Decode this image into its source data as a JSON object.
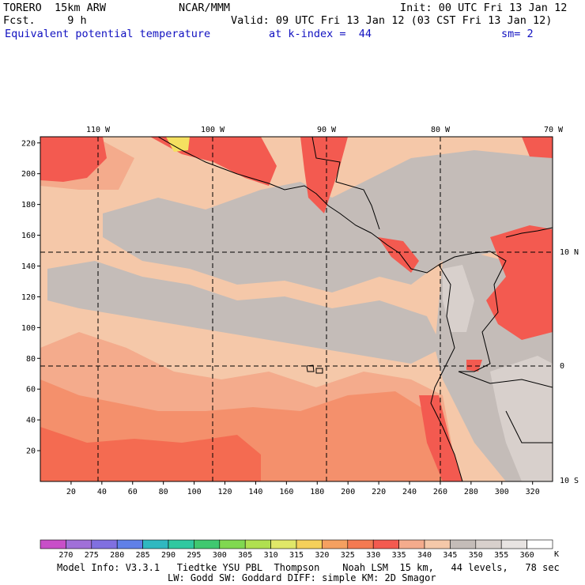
{
  "header": {
    "model": "TORERO  15km ARW",
    "center": "NCAR/MMM",
    "init": "Init: 00 UTC Fri 13 Jan 12",
    "fcst": "Fcst.     9 h",
    "valid": "Valid: 09 UTC Fri 13 Jan 12 (03 CST Fri 13 Jan 12)",
    "field": "Equivalent potential temperature",
    "kindex": "at k-index =  44",
    "smooth": "sm= 2"
  },
  "map": {
    "lon_labels": [
      "110 W",
      "100 W",
      "90 W",
      "80 W",
      "70 W"
    ],
    "lat_labels": [
      "10 N",
      "0",
      "10 S"
    ],
    "y_ticks": [
      "20",
      "40",
      "60",
      "80",
      "100",
      "120",
      "140",
      "160",
      "180",
      "200",
      "220"
    ],
    "x_ticks": [
      "20",
      "40",
      "60",
      "80",
      "100",
      "120",
      "140",
      "160",
      "180",
      "200",
      "220",
      "240",
      "260",
      "280",
      "300",
      "320"
    ],
    "palette": {
      "ocean_low": "#f5c8a9",
      "ocean_mid": "#f4ab8c",
      "warm": "#f35a50",
      "hot": "#f74b4b",
      "grey_dark": "#c4bcb8",
      "grey_light": "#d8d0cc",
      "yellow": "#f5e060",
      "coast": "#000000"
    }
  },
  "colorbar": {
    "labels": [
      "270",
      "275",
      "280",
      "285",
      "290",
      "295",
      "300",
      "305",
      "310",
      "315",
      "320",
      "325",
      "330",
      "335",
      "340",
      "345",
      "350",
      "355",
      "360"
    ],
    "unit": "K",
    "colors": [
      "#c84fc8",
      "#a070d8",
      "#8070e0",
      "#6080e8",
      "#30b8c0",
      "#30c8a0",
      "#40c870",
      "#80d850",
      "#b0e050",
      "#e0e868",
      "#f5d05a",
      "#f5a060",
      "#f47a52",
      "#f35a50",
      "#f4ab8c",
      "#f5c8a9",
      "#c4bcb8",
      "#d8d0cc",
      "#e8e4e2",
      "#ffffff"
    ]
  },
  "footer": {
    "line1": "Model Info: V3.3.1   Tiedtke YSU PBL  Thompson    Noah LSM  15 km,   44 levels,   78 sec",
    "line2": "LW: Godd SW: Goddard DIFF: simple KM: 2D Smagor"
  }
}
